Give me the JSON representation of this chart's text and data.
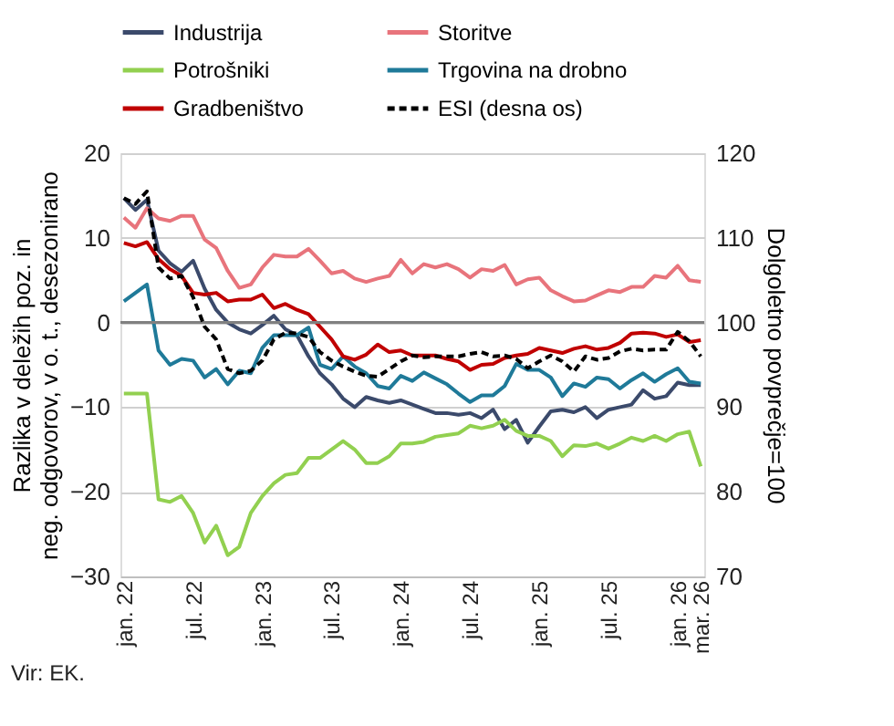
{
  "chart_data": {
    "type": "line",
    "ylabel": "Razlika v deležih poz. in\nneg. odgovorov, v o. t., desezonirano",
    "y2label": "Dolgoletno povprečje=100",
    "annotations": [
      "Vir: EK."
    ],
    "categories": [
      "jan. 22",
      null,
      null,
      null,
      null,
      null,
      "jul. 22",
      null,
      null,
      null,
      null,
      null,
      "jan. 23",
      null,
      null,
      null,
      null,
      null,
      "jul. 23",
      null,
      null,
      null,
      null,
      null,
      "jan. 24",
      null,
      null,
      null,
      null,
      null,
      "jul. 24",
      null,
      null,
      null,
      null,
      null,
      "jan. 25",
      null,
      null,
      null,
      null,
      null,
      "jul. 25",
      null,
      null,
      null,
      null,
      null,
      "jan. 26",
      null,
      "mar. 26"
    ],
    "ylim": [
      -30,
      20
    ],
    "yticks": [
      -30,
      -20,
      -10,
      0,
      10,
      20
    ],
    "y2lim": [
      70,
      120
    ],
    "y2ticks": [
      70,
      80,
      90,
      100,
      110,
      120
    ],
    "grid": "y",
    "legend": "top",
    "ref_lines": [
      {
        "axis": "y",
        "value": 0,
        "color": "#808080"
      }
    ],
    "series": [
      {
        "name": "Industrija",
        "color": "#3b4a6b",
        "values": [
          14.7,
          13.3,
          14.5,
          8.5,
          7,
          6,
          7.3,
          4,
          1.5,
          0,
          -0.8,
          -1.3,
          -0.3,
          0.8,
          -0.8,
          -1.5,
          -4,
          -6,
          -7.3,
          -9,
          -10,
          -8.8,
          -9.2,
          -9.5,
          -9.2,
          -9.7,
          -10.2,
          -10.7,
          -10.7,
          -10.9,
          -10.7,
          -11.3,
          -10.3,
          -12.6,
          -11.5,
          -14.2,
          -12.3,
          -10.5,
          -10.3,
          -10.6,
          -10,
          -11.3,
          -10.3,
          -10,
          -9.7,
          -8,
          -9,
          -8.7,
          -7.1,
          -7.4,
          -7.4
        ]
      },
      {
        "name": "Storitve",
        "color": "#e8747c",
        "values": [
          12.4,
          11.2,
          13.5,
          12.3,
          12,
          12.6,
          12.6,
          9.8,
          8.8,
          6.1,
          4.1,
          4.5,
          6.5,
          8,
          7.8,
          7.8,
          8.7,
          7.3,
          5.8,
          6.1,
          5.2,
          4.8,
          5.2,
          5.5,
          7.4,
          5.8,
          6.9,
          6.5,
          6.9,
          6.3,
          5.3,
          6.3,
          6.1,
          6.8,
          4.5,
          5.1,
          5.3,
          3.8,
          3.1,
          2.5,
          2.6,
          3.2,
          3.8,
          3.6,
          4.2,
          4.2,
          5.5,
          5.3,
          6.7,
          5,
          4.8
        ]
      },
      {
        "name": "Potrošniki",
        "color": "#92d050",
        "values": [
          -8.4,
          -8.4,
          -8.4,
          -20.9,
          -21.2,
          -20.5,
          -22.5,
          -26,
          -24,
          -27.5,
          -26.5,
          -22.5,
          -20.5,
          -19,
          -18,
          -17.8,
          -16,
          -16,
          -15,
          -14,
          -15,
          -16.6,
          -16.6,
          -15.8,
          -14.3,
          -14.3,
          -14.1,
          -13.5,
          -13.3,
          -13.1,
          -12.2,
          -12.5,
          -12.2,
          -11.5,
          -12.8,
          -13.4,
          -13.4,
          -14,
          -15.8,
          -14.5,
          -14.6,
          -14.3,
          -14.9,
          -14.3,
          -13.6,
          -14,
          -13.4,
          -14,
          -13.2,
          -12.9,
          -17
        ]
      },
      {
        "name": "Trgovina na drobno",
        "color": "#1f7a99",
        "values": [
          2.5,
          3.5,
          4.5,
          -3.3,
          -5,
          -4.3,
          -4.5,
          -6.5,
          -5.5,
          -7.3,
          -5.7,
          -6,
          -3,
          -1.5,
          -1.5,
          -1.5,
          -0.6,
          -5,
          -5.5,
          -4,
          -5.2,
          -6,
          -7.5,
          -7.8,
          -6.3,
          -6.9,
          -5.9,
          -6.6,
          -7.3,
          -8.4,
          -9.4,
          -8.6,
          -8.6,
          -7.5,
          -4.9,
          -5.6,
          -5.6,
          -6.5,
          -8.7,
          -7.2,
          -7.6,
          -6.5,
          -6.7,
          -7.8,
          -6.8,
          -6,
          -7,
          -6.1,
          -5.4,
          -7,
          -7.2
        ]
      },
      {
        "name": "Gradbeništvo",
        "color": "#c00000",
        "values": [
          9.4,
          9,
          9.5,
          7.5,
          6.3,
          5.5,
          3.5,
          3.3,
          3.5,
          2.5,
          2.7,
          2.7,
          3.3,
          1.7,
          2.2,
          1.5,
          1,
          -0.5,
          -2,
          -4,
          -4.4,
          -3.8,
          -2.6,
          -3.5,
          -3.3,
          -3.9,
          -3.9,
          -3.9,
          -4.3,
          -4.6,
          -5.6,
          -5,
          -4.9,
          -4.2,
          -3.9,
          -3.7,
          -3,
          -3.3,
          -3.6,
          -3.1,
          -2.8,
          -3.2,
          -3,
          -2.4,
          -1.3,
          -1.2,
          -1.3,
          -1.7,
          -1.4,
          -2.3,
          -2.1
        ]
      },
      {
        "name": "ESI (desna os)",
        "color": "#000000",
        "axis": "y2",
        "line_style": "dashed",
        "values": [
          114.7,
          114,
          115.5,
          106.5,
          105.2,
          105.5,
          103,
          99.5,
          98,
          94.5,
          94,
          94.3,
          95.5,
          98,
          98.8,
          98.7,
          98.3,
          96.5,
          95.5,
          94.8,
          94.2,
          93.7,
          93.6,
          94.5,
          95.4,
          96.1,
          95.9,
          96,
          96,
          96,
          96.3,
          96.5,
          96,
          96.1,
          95.7,
          94.6,
          95.4,
          96.1,
          95.4,
          94.2,
          96,
          95.6,
          95.8,
          96.6,
          96.9,
          96.7,
          96.8,
          96.8,
          98.9,
          97.8,
          96
        ]
      }
    ]
  }
}
